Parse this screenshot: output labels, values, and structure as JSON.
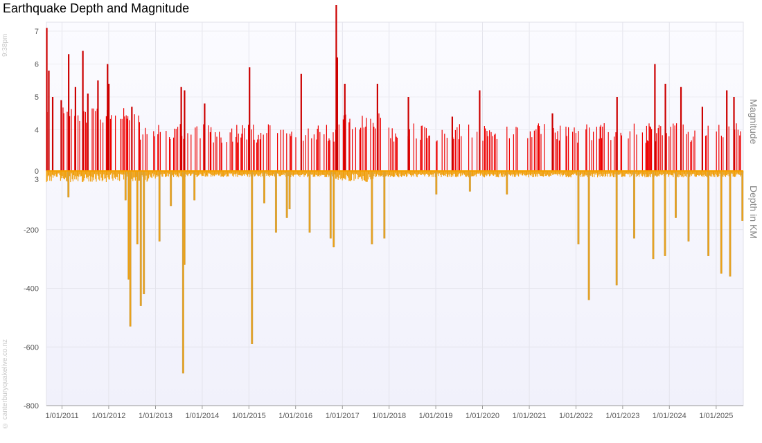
{
  "page": {
    "title": "Earthquake Depth and Magnitude",
    "time_stamp": "9:38pm",
    "credit": "© canterburyquakelive.co.nz"
  },
  "chart_data": [
    {
      "type": "bar",
      "panel": "magnitude",
      "ylabel": "Magnitude",
      "ylim": [
        0,
        7.5
      ],
      "yticks": [
        0,
        3,
        4,
        5,
        6,
        7
      ],
      "xlim": [
        "2010-09-01",
        "2025-08-01"
      ],
      "xticks": [
        "1/01/2011",
        "1/01/2012",
        "1/01/2013",
        "1/01/2014",
        "1/01/2015",
        "1/01/2016",
        "1/01/2017",
        "1/01/2018",
        "1/01/2019",
        "1/01/2020",
        "1/01/2021",
        "1/01/2022",
        "1/01/2023",
        "1/01/2024",
        "1/01/2025"
      ],
      "color": "#ee0000",
      "background": "4.0–4.5 dense baseline",
      "peaks": [
        {
          "x": "2010-09-04",
          "y": 7.1
        },
        {
          "x": "2010-09-20",
          "y": 5.8
        },
        {
          "x": "2010-10-20",
          "y": 5.0
        },
        {
          "x": "2010-12-26",
          "y": 4.9
        },
        {
          "x": "2011-02-22",
          "y": 6.3
        },
        {
          "x": "2011-04-16",
          "y": 5.3
        },
        {
          "x": "2011-06-13",
          "y": 6.4
        },
        {
          "x": "2011-07-22",
          "y": 5.1
        },
        {
          "x": "2011-10-09",
          "y": 5.5
        },
        {
          "x": "2011-12-23",
          "y": 6.0
        },
        {
          "x": "2012-01-02",
          "y": 5.4
        },
        {
          "x": "2012-06-30",
          "y": 4.7
        },
        {
          "x": "2013-07-21",
          "y": 5.3
        },
        {
          "x": "2013-08-16",
          "y": 5.2
        },
        {
          "x": "2014-01-20",
          "y": 4.8
        },
        {
          "x": "2015-01-06",
          "y": 5.9
        },
        {
          "x": "2016-02-14",
          "y": 5.7
        },
        {
          "x": "2016-11-14",
          "y": 7.8
        },
        {
          "x": "2016-11-22",
          "y": 6.2
        },
        {
          "x": "2017-01-20",
          "y": 5.4
        },
        {
          "x": "2017-10-02",
          "y": 5.4
        },
        {
          "x": "2018-06-01",
          "y": 5.0
        },
        {
          "x": "2019-05-10",
          "y": 4.4
        },
        {
          "x": "2019-12-10",
          "y": 5.2
        },
        {
          "x": "2021-07-01",
          "y": 4.5
        },
        {
          "x": "2022-11-18",
          "y": 5.0
        },
        {
          "x": "2023-09-10",
          "y": 6.0
        },
        {
          "x": "2023-12-01",
          "y": 5.4
        },
        {
          "x": "2024-04-01",
          "y": 5.3
        },
        {
          "x": "2024-09-15",
          "y": 4.7
        },
        {
          "x": "2025-03-25",
          "y": 5.2
        },
        {
          "x": "2025-05-20",
          "y": 5.0
        }
      ]
    },
    {
      "type": "bar",
      "panel": "depth",
      "ylabel": "Depth in KM",
      "ylim": [
        -800,
        0
      ],
      "yticks": [
        -800,
        -600,
        -400,
        -200,
        3
      ],
      "xlim": [
        "2010-09-01",
        "2025-08-01"
      ],
      "xticks": [
        "1/01/2011",
        "1/01/2012",
        "1/01/2013",
        "1/01/2014",
        "1/01/2015",
        "1/01/2016",
        "1/01/2017",
        "1/01/2018",
        "1/01/2019",
        "1/01/2020",
        "1/01/2021",
        "1/01/2022",
        "1/01/2023",
        "1/01/2024",
        "1/01/2025"
      ],
      "color": "#f0a010",
      "outline_color": "#cda552",
      "deep_events": [
        {
          "x": "2011-02-20",
          "y": -90
        },
        {
          "x": "2012-05-12",
          "y": -100
        },
        {
          "x": "2012-06-05",
          "y": -370
        },
        {
          "x": "2012-06-18",
          "y": -530
        },
        {
          "x": "2012-08-12",
          "y": -250
        },
        {
          "x": "2012-09-08",
          "y": -460
        },
        {
          "x": "2012-10-02",
          "y": -420
        },
        {
          "x": "2013-02-01",
          "y": -240
        },
        {
          "x": "2013-05-01",
          "y": -120
        },
        {
          "x": "2013-08-05",
          "y": -690
        },
        {
          "x": "2013-08-15",
          "y": -320
        },
        {
          "x": "2013-11-01",
          "y": -100
        },
        {
          "x": "2015-01-25",
          "y": -590
        },
        {
          "x": "2015-05-01",
          "y": -110
        },
        {
          "x": "2015-08-01",
          "y": -210
        },
        {
          "x": "2015-10-25",
          "y": -160
        },
        {
          "x": "2015-11-15",
          "y": -130
        },
        {
          "x": "2016-04-20",
          "y": -210
        },
        {
          "x": "2016-10-01",
          "y": -230
        },
        {
          "x": "2016-10-25",
          "y": -260
        },
        {
          "x": "2017-08-20",
          "y": -250
        },
        {
          "x": "2017-11-25",
          "y": -230
        },
        {
          "x": "2019-01-05",
          "y": -80
        },
        {
          "x": "2019-09-25",
          "y": -70
        },
        {
          "x": "2020-07-10",
          "y": -80
        },
        {
          "x": "2022-01-20",
          "y": -250
        },
        {
          "x": "2022-04-12",
          "y": -440
        },
        {
          "x": "2022-11-15",
          "y": -390
        },
        {
          "x": "2023-04-01",
          "y": -230
        },
        {
          "x": "2023-08-28",
          "y": -300
        },
        {
          "x": "2023-11-28",
          "y": -290
        },
        {
          "x": "2024-02-20",
          "y": -160
        },
        {
          "x": "2024-05-30",
          "y": -240
        },
        {
          "x": "2024-11-01",
          "y": -290
        },
        {
          "x": "2025-02-10",
          "y": -350
        },
        {
          "x": "2025-04-20",
          "y": -360
        },
        {
          "x": "2025-07-25",
          "y": -170
        }
      ]
    }
  ]
}
